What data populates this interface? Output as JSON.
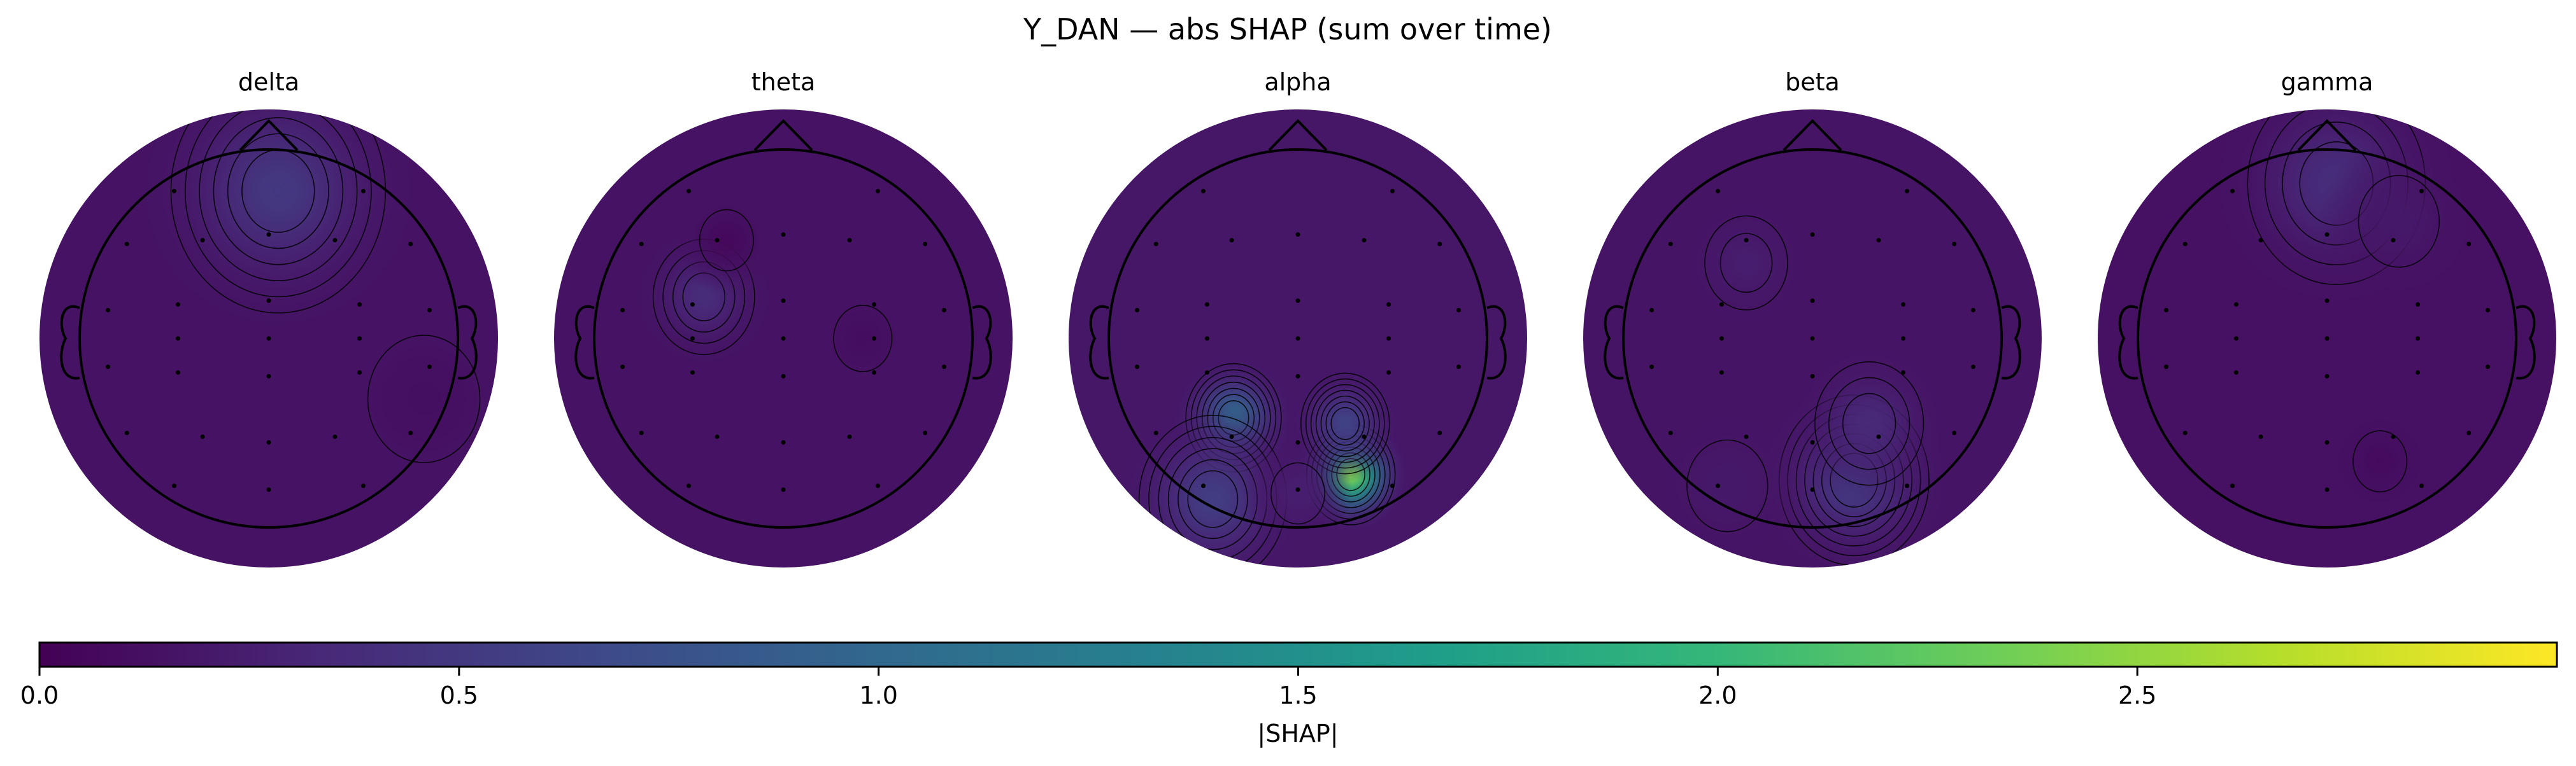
{
  "title": "Y_DAN — abs SHAP (sum over time)",
  "colormap": "viridis",
  "colors": {
    "viridis_stops": [
      "#440154",
      "#482878",
      "#3e4989",
      "#31688e",
      "#26828e",
      "#1f9e89",
      "#35b779",
      "#6ece58",
      "#b5de2b",
      "#fde725"
    ]
  },
  "chart_data": {
    "type": "heatmap",
    "subtype": "scalp-topomap",
    "metric": "|SHAP| summed over time",
    "panels": [
      {
        "title": "delta",
        "background_value": 0.15,
        "hotspots": [
          {
            "region": "frontal-midline",
            "u": 0.05,
            "v": -0.78,
            "sigma": 0.32,
            "value": 0.5
          },
          {
            "region": "right-temporal",
            "u": 0.82,
            "v": 0.32,
            "sigma": 0.25,
            "value": 0.12
          }
        ]
      },
      {
        "title": "theta",
        "background_value": 0.15,
        "hotspots": [
          {
            "region": "left-frontal",
            "u": -0.42,
            "v": -0.22,
            "sigma": 0.16,
            "value": 0.38
          },
          {
            "region": "right-frontocentral",
            "u": 0.42,
            "v": 0.0,
            "sigma": 0.13,
            "value": 0.1
          },
          {
            "region": "left-prefrontal",
            "u": -0.3,
            "v": -0.52,
            "sigma": 0.12,
            "value": 0.06
          }
        ]
      },
      {
        "title": "alpha",
        "background_value": 0.18,
        "hotspots": [
          {
            "region": "right-occipital",
            "u": 0.28,
            "v": 0.72,
            "sigma": 0.13,
            "value": 2.4
          },
          {
            "region": "left-parieto-occipital",
            "u": -0.34,
            "v": 0.42,
            "sigma": 0.14,
            "value": 1.05
          },
          {
            "region": "right-parieto-occipital",
            "u": 0.25,
            "v": 0.45,
            "sigma": 0.13,
            "value": 0.6
          },
          {
            "region": "left-occipital",
            "u": -0.45,
            "v": 0.85,
            "sigma": 0.22,
            "value": 0.55
          },
          {
            "region": "midline-occipital",
            "u": 0.0,
            "v": 0.82,
            "sigma": 0.12,
            "value": 0.25
          }
        ]
      },
      {
        "title": "beta",
        "background_value": 0.16,
        "hotspots": [
          {
            "region": "right-occipital",
            "u": 0.22,
            "v": 0.75,
            "sigma": 0.22,
            "value": 0.55
          },
          {
            "region": "right-parietal",
            "u": 0.3,
            "v": 0.45,
            "sigma": 0.18,
            "value": 0.35
          },
          {
            "region": "left-frontal",
            "u": -0.35,
            "v": -0.4,
            "sigma": 0.15,
            "value": 0.25
          },
          {
            "region": "left-occipital",
            "u": -0.45,
            "v": 0.78,
            "sigma": 0.18,
            "value": 0.2
          }
        ]
      },
      {
        "title": "gamma",
        "background_value": 0.14,
        "hotspots": [
          {
            "region": "frontal",
            "u": 0.05,
            "v": -0.82,
            "sigma": 0.28,
            "value": 0.4
          },
          {
            "region": "right-prefrontal",
            "u": 0.38,
            "v": -0.62,
            "sigma": 0.18,
            "value": 0.2
          },
          {
            "region": "right-occipital",
            "u": 0.28,
            "v": 0.65,
            "sigma": 0.12,
            "value": 0.08
          }
        ]
      }
    ],
    "colorbar": {
      "label": "|SHAP|",
      "min": 0.0,
      "max": 3.0,
      "ticks": [
        0.0,
        0.5,
        1.0,
        1.5,
        2.0,
        2.5
      ],
      "tick_labels": [
        "0.0",
        "0.5",
        "1.0",
        "1.5",
        "2.0",
        "2.5"
      ],
      "orientation": "horizontal"
    }
  }
}
